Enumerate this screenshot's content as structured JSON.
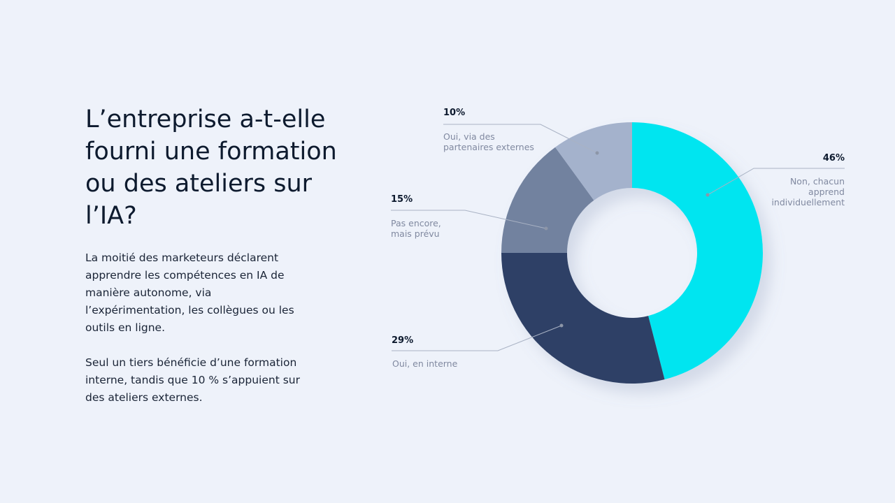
{
  "chart_data": {
    "type": "donut",
    "title": "L’entreprise a-t-elle fourni une formation ou des ateliers sur l’IA?",
    "description": [
      "La moitié des marketeurs déclarent apprendre les compétences en IA de manière autonome, via l’expérimentation, les collègues ou les outils en ligne.",
      "Seul un tiers bénéficie d’une formation interne, tandis que 10 % s’appuient sur des ateliers externes."
    ],
    "categories": [
      "Non, chacun apprend individuellement",
      "Oui, en interne",
      "Pas encore, mais prévu",
      "Oui, via des partenaires externes"
    ],
    "values": [
      46,
      29,
      15,
      10
    ],
    "value_labels": [
      "46%",
      "29%",
      "15%",
      "10%"
    ],
    "colors": [
      "#00e5f0",
      "#2d4166",
      "#72829f",
      "#a4b2cc"
    ]
  }
}
